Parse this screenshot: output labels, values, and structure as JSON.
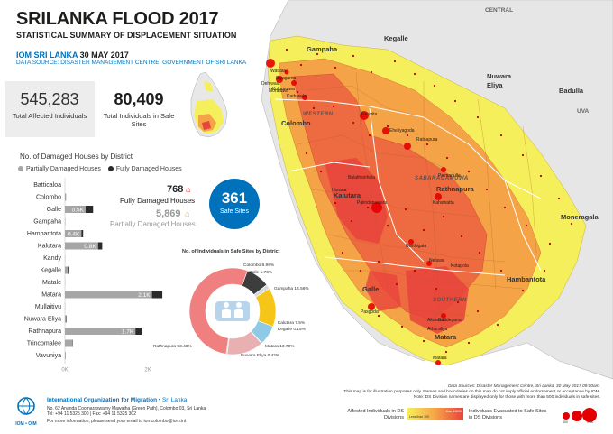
{
  "header": {
    "title": "SRILANKA FLOOD 2017",
    "subtitle": "STATISTICAL SUMMARY OF DISPLACEMENT SITUATION",
    "org_prefix": "IOM SRI LANKA ",
    "date": "30 MAY 2017",
    "source": "DATA SOURCE: DISASTER MANAGEMENT CENTRE, GOVERNMENT OF SRI LANKA"
  },
  "stats": {
    "affected_value": "545,283",
    "affected_label": "Total Affected Individuals",
    "safe_value": "80,409",
    "safe_label": "Total Individuals in Safe Sites"
  },
  "houses": {
    "title": "No. of Damaged Houses by District",
    "legend_partial": "Partially Damaged Houses",
    "legend_full": "Fully Damaged Houses",
    "fully_value": "768",
    "fully_label": "Fully Damaged Houses",
    "partial_value": "5,869",
    "partial_label": "Partially Damaged Houses",
    "safe_sites_value": "361",
    "safe_sites_label": "Safe Sites",
    "axis_ticks": [
      "0K",
      "2K"
    ]
  },
  "chart_data": [
    {
      "type": "bar",
      "title": "No. of Damaged Houses by District",
      "categories": [
        "Batticaloa",
        "Colombo",
        "Galle",
        "Gampaha",
        "Hambantota",
        "Kalutara",
        "Kandy",
        "Kegalle",
        "Matale",
        "Matara",
        "Mullaitivu",
        "Nuwara Eliya",
        "Rathnapura",
        "Trincomalee",
        "Vavuniya"
      ],
      "series": [
        {
          "name": "Partially Damaged Houses",
          "values": [
            0,
            20,
            500,
            10,
            400,
            800,
            5,
            70,
            5,
            2100,
            5,
            30,
            1700,
            180,
            20
          ]
        },
        {
          "name": "Fully Damaged Houses",
          "values": [
            0,
            5,
            180,
            0,
            40,
            100,
            0,
            20,
            0,
            250,
            0,
            10,
            150,
            10,
            0
          ]
        }
      ],
      "bar_labels": {
        "Galle": "0.5K",
        "Hambantota": "0.4K",
        "Kalutara": "0.8K",
        "Matara": "2.1K",
        "Rathnapura": "1.7K"
      },
      "xlim": [
        0,
        2500
      ],
      "orientation": "horizontal"
    },
    {
      "type": "pie",
      "title": "No. of Individuals in Safe Sites by District",
      "categories": [
        "Colombo",
        "Galle",
        "Gampaha",
        "Kalutara",
        "Kegalle",
        "Matara",
        "Nuwara Eliya",
        "Rathnapura"
      ],
      "values": [
        8.99,
        1.76,
        14.56,
        7.5,
        0.15,
        13.79,
        0.42,
        53.48
      ],
      "labels": [
        "Colombo 8.99%",
        "Galle 1.76%",
        "Gampaha 14.56%",
        "Kalutara 7.5%",
        "Kegalle 0.15%",
        "Matara 13.79%",
        "Nuwara Eliya 0.42%",
        "Rathnapura 53.48%"
      ],
      "colors": [
        "#3d3d3d",
        "#d9d9d9",
        "#f5c518",
        "#8ecae6",
        "#cfcfcf",
        "#e8b0b0",
        "#c9c9c9",
        "#f08080"
      ]
    }
  ],
  "map": {
    "sea_labels": [
      "CENTRAL",
      "UVA",
      "WESTERN",
      "SABARAGAMUWA",
      "SOUTHERN"
    ],
    "districts": [
      "Kegalle",
      "Gampaha",
      "Colombo",
      "Nuwara Eliya",
      "Badulla",
      "Kalutara",
      "Rathnapura",
      "Moneragala",
      "Galle",
      "Hambantota",
      "Matara"
    ],
    "ds_places": [
      "Wattala",
      "Biyagama",
      "Kolonnawa",
      "Kaduwela",
      "Dehiwala",
      "Moratuwa",
      "Horana",
      "Bulathsinhala",
      "Palindanuwara",
      "Kuruvita",
      "Eheliyagoda",
      "Ratnapura",
      "Pelmadulla",
      "Kahawatta",
      "Nivithigala",
      "Neluwa",
      "Kotapola",
      "Pasgoda",
      "Baddegama",
      "Akuressa",
      "Athuraliya",
      "Matara"
    ],
    "legend_affected_title": "Affected Individuals in DS Divisions",
    "legend_affected_min": "Less than 100",
    "legend_affected_max": "Max 41000",
    "legend_evac_title": "Individuals Evacuated to Safe Sites in DS Divisions",
    "legend_evac_values": [
      "300",
      "1.8K"
    ],
    "colors": {
      "low": "#f5ef5b",
      "mid": "#f5a347",
      "high": "#e8433c",
      "land_out": "#e6e6e6",
      "circle": "#e40000"
    }
  },
  "notes": {
    "source": "Data Sources: Disaster Management Centre, Sri Lanka, 30 May 2017 09:00am.",
    "disclaimer": "This map is for illustration purposes only. Names and boundaries on this map do not imply official endorsement or acceptance by IOM.",
    "ds_note": "Note: DS Division names are displayed only for those with more than 500 individuals in safe sites."
  },
  "footer": {
    "org": "International Organization for Migration",
    "org_suffix": " • Sri Lanka",
    "address": "No. 62 Ananda Coomaraswamy Mawatha (Green Path), Colombo 03, Sri Lanka",
    "phone": "Tel: +94 11 5325 300 | Fax: +94 11 5325 302",
    "email_line": "For more information, please send your email to iomcolombo@iom.int",
    "logo_text": "IOM • OIM"
  }
}
